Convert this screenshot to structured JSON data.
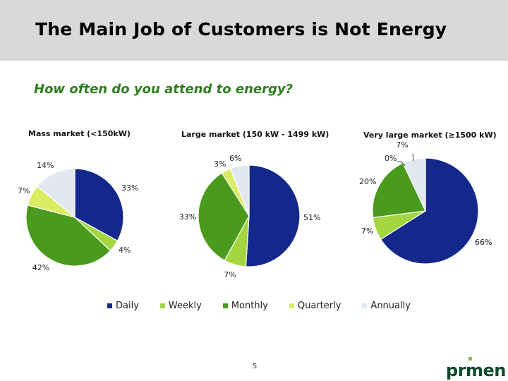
{
  "slide": {
    "title": "The Main Job of Customers is Not Energy",
    "subtitle": "How often do you attend to energy?",
    "page_number": "5",
    "logo_text": "prmen"
  },
  "colors": {
    "Daily": "#14288c",
    "Weekly": "#a3d63f",
    "Monthly": "#4a9a1e",
    "Quarterly": "#dcec62",
    "Annually": "#e1e8f0"
  },
  "chart_data": [
    {
      "type": "pie",
      "title": "Mass market (<150kW)",
      "categories": [
        "Daily",
        "Weekly",
        "Monthly",
        "Quarterly",
        "Annually"
      ],
      "values": [
        33,
        4,
        42,
        7,
        14
      ],
      "labels": [
        "33%",
        "4%",
        "42%",
        "7%",
        "14%"
      ]
    },
    {
      "type": "pie",
      "title": "Large market (150 kW - 1499 kW)",
      "categories": [
        "Daily",
        "Weekly",
        "Monthly",
        "Quarterly",
        "Annually"
      ],
      "values": [
        51,
        7,
        33,
        3,
        6
      ],
      "labels": [
        "51%",
        "7%",
        "33%",
        "3%",
        "6%"
      ]
    },
    {
      "type": "pie",
      "title": "Very large market (≥1500 kW)",
      "categories": [
        "Daily",
        "Weekly",
        "Monthly",
        "Quarterly",
        "Annually"
      ],
      "values": [
        66,
        7,
        20,
        0,
        7
      ],
      "labels": [
        "66%",
        "7%",
        "20%",
        "0%",
        "7%"
      ]
    }
  ],
  "legend": {
    "position": "bottom",
    "items": [
      "Daily",
      "Weekly",
      "Monthly",
      "Quarterly",
      "Annually"
    ]
  }
}
